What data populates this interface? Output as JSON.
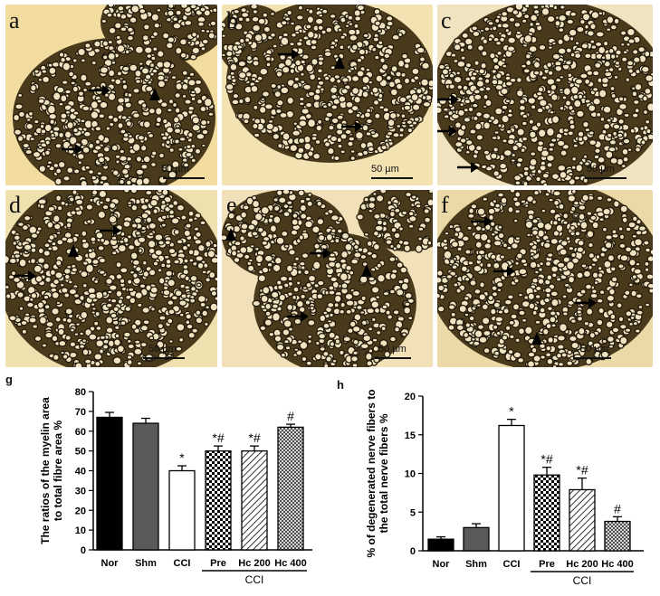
{
  "panels": [
    {
      "id": "a",
      "label": "a",
      "scale": "50 µm"
    },
    {
      "id": "b",
      "label": "b",
      "scale": "50 µm"
    },
    {
      "id": "c",
      "label": "c",
      "scale": "50 µm"
    },
    {
      "id": "d",
      "label": "d",
      "scale": "50 µm"
    },
    {
      "id": "e",
      "label": "e",
      "scale": "50 µm"
    },
    {
      "id": "f",
      "label": "f",
      "scale": "50 µm"
    }
  ],
  "chart_data": [
    {
      "panel": "g",
      "type": "bar",
      "ylabel_lines": [
        "The ratios of the myelin area",
        "to total fibre area %"
      ],
      "ylim": [
        0,
        80
      ],
      "yticks": [
        0,
        10,
        20,
        30,
        40,
        50,
        60,
        70,
        80
      ],
      "categories": [
        "Nor",
        "Shm",
        "CCI",
        "Pre",
        "Hc 200",
        "Hc 400"
      ],
      "values": [
        67,
        64,
        40,
        50,
        50,
        62
      ],
      "errors": [
        2.5,
        2.5,
        2.5,
        2.5,
        2.5,
        1.5
      ],
      "annotations": [
        "",
        "",
        "*",
        "*#",
        "*#",
        "#"
      ],
      "fills": [
        "solid-black",
        "solid-gray",
        "white",
        "checker",
        "diagonal",
        "crosshatch"
      ],
      "group_label": "CCI"
    },
    {
      "panel": "h",
      "type": "bar",
      "ylabel_lines": [
        "% of degenerated nerve fibers to",
        "the  total nerve fibers %"
      ],
      "ylim": [
        0,
        20
      ],
      "yticks": [
        0,
        5,
        10,
        15,
        20
      ],
      "categories": [
        "Nor",
        "Shm",
        "CCI",
        "Pre",
        "Hc 200",
        "Hc 400"
      ],
      "values": [
        1.5,
        3,
        16.2,
        9.8,
        7.9,
        3.8
      ],
      "errors": [
        0.3,
        0.5,
        0.8,
        1.0,
        1.5,
        0.6
      ],
      "annotations": [
        "",
        "",
        "*",
        "*#",
        "*#",
        "#"
      ],
      "fills": [
        "solid-black",
        "solid-gray",
        "white",
        "checker",
        "diagonal",
        "crosshatch"
      ],
      "group_label": "CCI"
    }
  ]
}
